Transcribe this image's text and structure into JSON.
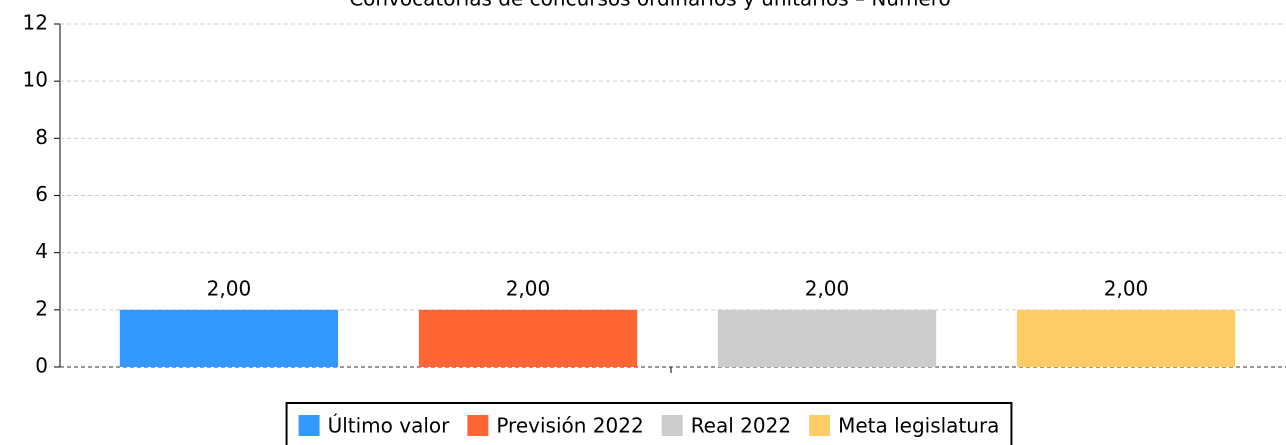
{
  "chart_data": {
    "type": "bar",
    "title": "Convocatorias de concursos ordinarios y unitarios – Número",
    "categories": [
      null
    ],
    "series": [
      {
        "name": "Último valor",
        "color": "#3399ff",
        "values": [
          2
        ],
        "value_labels": [
          "2,00"
        ]
      },
      {
        "name": "Previsión 2022",
        "color": "#ff6633",
        "values": [
          2
        ],
        "value_labels": [
          "2,00"
        ]
      },
      {
        "name": "Real 2022",
        "color": "#cccccc",
        "values": [
          2
        ],
        "value_labels": [
          "2,00"
        ]
      },
      {
        "name": "Meta legislatura",
        "color": "#ffcc66",
        "values": [
          2
        ],
        "value_labels": [
          "2,00"
        ]
      }
    ],
    "ylim": [
      0,
      12
    ],
    "yticks": [
      0,
      2,
      4,
      6,
      8,
      10,
      12
    ],
    "grid": true,
    "legend": "bottom"
  }
}
